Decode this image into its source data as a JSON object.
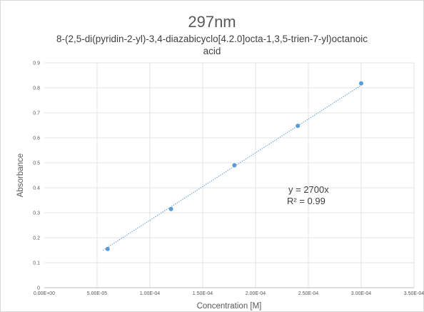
{
  "chart_data": {
    "type": "scatter",
    "title": "297nm",
    "subtitle": "8-(2,5-di(pyridin-2-yl)-3,4-diazabicyclo[4.2.0]octa-1,3,5-trien-7-yl)octanoic acid",
    "subtitle_lines": [
      "8-(2,5-di(pyridin-2-yl)-3,4-diazabicyclo[4.2.0]octa-1,3,5-trien-7-yl)octanoic",
      "acid"
    ],
    "xlabel": "Concentration [M]",
    "ylabel": "Absorbance",
    "xlim": [
      0,
      0.00035
    ],
    "ylim": [
      0,
      0.9
    ],
    "x_ticks": [
      0,
      5e-05,
      0.0001,
      0.00015,
      0.0002,
      0.00025,
      0.0003,
      0.00035
    ],
    "x_tick_labels": [
      "0.00E+00",
      "5.00E-05",
      "1.00E-04",
      "1.50E-04",
      "2.00E-04",
      "2.50E-04",
      "3.00E-04",
      "3.50E-04"
    ],
    "y_ticks": [
      0,
      0.1,
      0.2,
      0.3,
      0.4,
      0.5,
      0.6,
      0.7,
      0.8,
      0.9
    ],
    "y_tick_labels": [
      "0",
      "0.1",
      "0.2",
      "0.3",
      "0.4",
      "0.5",
      "0.6",
      "0.7",
      "0.8",
      "0.9"
    ],
    "grid": true,
    "series": [
      {
        "x": [
          6e-05,
          0.00012,
          0.00018,
          0.00024,
          0.0003
        ],
        "y": [
          0.155,
          0.315,
          0.49,
          0.648,
          0.818
        ],
        "color": "#5b9bd5"
      }
    ],
    "trendline": {
      "slope": 2700,
      "x_range": [
        5.55e-05,
        0.0003
      ],
      "style": "dotted",
      "color": "#5b9bd5",
      "equation": "y = 2700x",
      "r_squared": "R² = 0.99"
    }
  }
}
